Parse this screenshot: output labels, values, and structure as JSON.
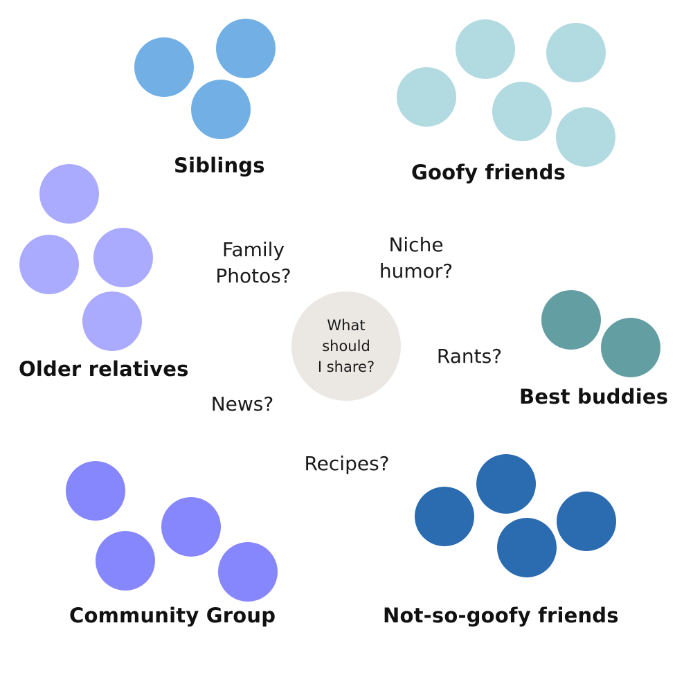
{
  "colors": {
    "siblings": "#72afe5",
    "goofy_friends": "#b2dae1",
    "older_relatives": "#aaabfe",
    "best_buddies": "#629ea2",
    "community_group": "#8787fd",
    "not_so_goofy_friends": "#2b6bb0",
    "center": "#ebe8e4"
  },
  "center": {
    "line1": "What",
    "line2": "should",
    "line3": "I share?"
  },
  "groups": {
    "siblings": "Siblings",
    "goofy_friends": "Goofy friends",
    "older_relatives": "Older relatives",
    "best_buddies": "Best buddies",
    "community_group": "Community Group",
    "not_so_goofy_friends": "Not-so-goofy friends"
  },
  "questions": {
    "family_photos": {
      "line1": "Family",
      "line2": "Photos?"
    },
    "niche_humor": {
      "line1": "Niche",
      "line2": "humor?"
    },
    "rants": "Rants?",
    "news": "News?",
    "recipes": "Recipes?"
  }
}
